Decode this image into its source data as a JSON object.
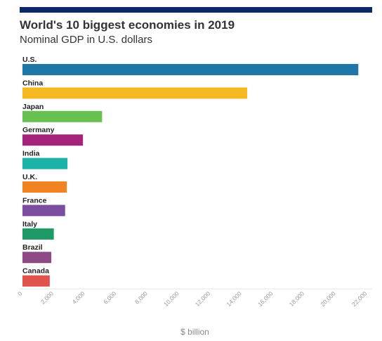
{
  "header": {
    "title": "World's 10 biggest economies in 2019",
    "subtitle": "Nominal GDP in U.S. dollars"
  },
  "chart_data": {
    "type": "bar",
    "orientation": "horizontal",
    "title": "World's 10 biggest economies in 2019",
    "subtitle": "Nominal GDP in U.S. dollars",
    "xlabel": "$ billion",
    "ylabel": "",
    "xlim": [
      0,
      22000
    ],
    "xticks": [
      0,
      2000,
      4000,
      6000,
      8000,
      10000,
      12000,
      14000,
      16000,
      18000,
      20000,
      22000
    ],
    "xtick_labels": [
      "0",
      "2,000",
      "4,000",
      "6,000",
      "8,000",
      "10,000",
      "12,000",
      "14,000",
      "16,000",
      "18,000",
      "20,000",
      "22,000"
    ],
    "categories": [
      "U.S.",
      "China",
      "Japan",
      "Germany",
      "India",
      "U.K.",
      "France",
      "Italy",
      "Brazil",
      "Canada"
    ],
    "values": [
      21430,
      14340,
      5080,
      3860,
      2870,
      2830,
      2720,
      2000,
      1840,
      1740
    ],
    "colors": [
      "#1f77a8",
      "#f5b820",
      "#66c151",
      "#a6237c",
      "#1bb2aa",
      "#f28322",
      "#7b4da1",
      "#1f9966",
      "#8e4a87",
      "#e0524c"
    ],
    "grid": false,
    "legend": "none"
  }
}
